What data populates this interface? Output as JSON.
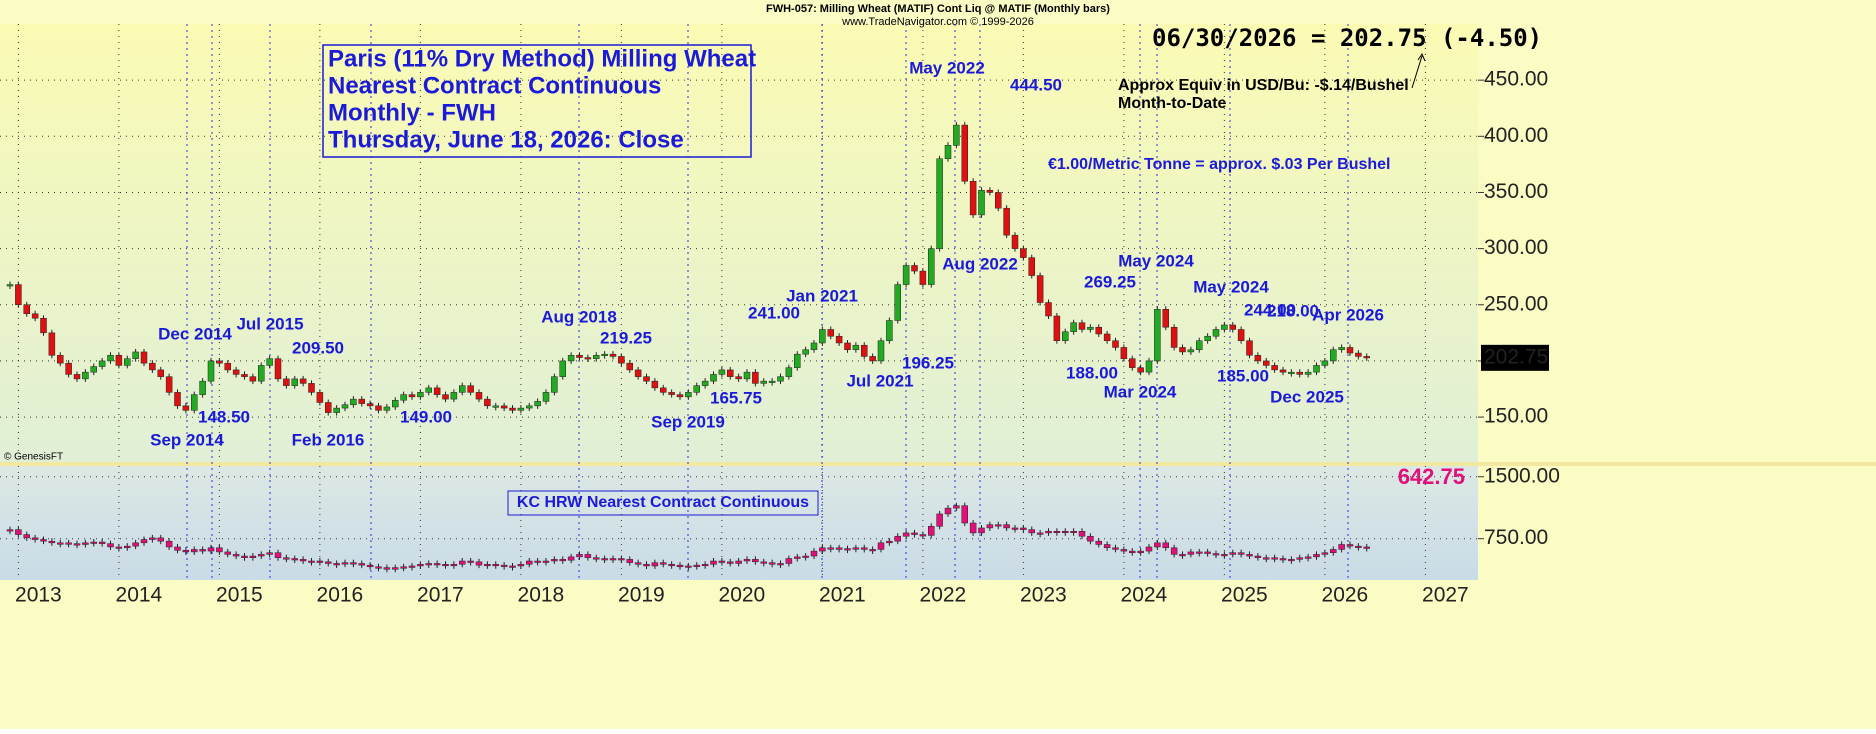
{
  "header": {
    "title": "FWH-057:  Milling Wheat (MATIF) Cont Liq @ MATIF  (Monthly bars)",
    "subtitle": "www.TradeNavigator.com © 1999-2026",
    "copyright": "© GenesisFT"
  },
  "chart_data": [
    {
      "type": "candlestick",
      "title": "Paris (11% Dry Method) Milling Wheat",
      "subtitle": [
        "Nearest Contract Continuous",
        "Monthly - FWH",
        "Thursday, June 18, 2026: Close"
      ],
      "notes": [
        "06/30/2026 = 202.75 (-4.50)",
        "Approx Equiv in USD/Bu: -$.14/Bushel",
        "Month-to-Date",
        "€1.00/Metric Tonne = approx. $.03 Per Bushel"
      ],
      "annotations": [
        "Dec 2014",
        "Jul 2015",
        "209.50",
        "148.50",
        "Sep 2014",
        "Feb 2016",
        "149.00",
        "Aug 2018",
        "219.25",
        "Sep 2019",
        "165.75",
        "Jan 2021",
        "241.00",
        "Jul 2021",
        "196.25",
        "May 2022",
        "444.50",
        "Aug 2022",
        "269.25",
        "May 2024",
        "188.00",
        "Mar 2024",
        "May 2024",
        "244.00",
        "218.00",
        "Apr 2026",
        "185.00",
        "Dec 2025"
      ],
      "x": [
        "2012-12",
        "2013-01",
        "2013-02",
        "2013-03",
        "2013-04",
        "2013-05",
        "2013-06",
        "2013-07",
        "2013-08",
        "2013-09",
        "2013-10",
        "2013-11",
        "2013-12",
        "2014-01",
        "2014-02",
        "2014-03",
        "2014-04",
        "2014-05",
        "2014-06",
        "2014-07",
        "2014-08",
        "2014-09",
        "2014-10",
        "2014-11",
        "2014-12",
        "2015-01",
        "2015-02",
        "2015-03",
        "2015-04",
        "2015-05",
        "2015-06",
        "2015-07",
        "2015-08",
        "2015-09",
        "2015-10",
        "2015-11",
        "2015-12",
        "2016-01",
        "2016-02",
        "2016-03",
        "2016-04",
        "2016-05",
        "2016-06",
        "2016-07",
        "2016-08",
        "2016-09",
        "2016-10",
        "2016-11",
        "2016-12",
        "2017-01",
        "2017-02",
        "2017-03",
        "2017-04",
        "2017-05",
        "2017-06",
        "2017-07",
        "2017-08",
        "2017-09",
        "2017-10",
        "2017-11",
        "2017-12",
        "2018-01",
        "2018-02",
        "2018-03",
        "2018-04",
        "2018-05",
        "2018-06",
        "2018-07",
        "2018-08",
        "2018-09",
        "2018-10",
        "2018-11",
        "2018-12",
        "2019-01",
        "2019-02",
        "2019-03",
        "2019-04",
        "2019-05",
        "2019-06",
        "2019-07",
        "2019-08",
        "2019-09",
        "2019-10",
        "2019-11",
        "2019-12",
        "2020-01",
        "2020-02",
        "2020-03",
        "2020-04",
        "2020-05",
        "2020-06",
        "2020-07",
        "2020-08",
        "2020-09",
        "2020-10",
        "2020-11",
        "2020-12",
        "2021-01",
        "2021-02",
        "2021-03",
        "2021-04",
        "2021-05",
        "2021-06",
        "2021-07",
        "2021-08",
        "2021-09",
        "2021-10",
        "2021-11",
        "2021-12",
        "2022-01",
        "2022-02",
        "2022-03",
        "2022-04",
        "2022-05",
        "2022-06",
        "2022-07",
        "2022-08",
        "2022-09",
        "2022-10",
        "2022-11",
        "2022-12",
        "2023-01",
        "2023-02",
        "2023-03",
        "2023-04",
        "2023-05",
        "2023-06",
        "2023-07",
        "2023-08",
        "2023-09",
        "2023-10",
        "2023-11",
        "2023-12",
        "2024-01",
        "2024-02",
        "2024-03",
        "2024-04",
        "2024-05",
        "2024-06",
        "2024-07",
        "2024-08",
        "2024-09",
        "2024-10",
        "2024-11",
        "2024-12",
        "2025-01",
        "2025-02",
        "2025-03",
        "2025-04",
        "2025-05",
        "2025-06",
        "2025-07",
        "2025-08",
        "2025-09",
        "2025-10",
        "2025-11",
        "2025-12",
        "2026-01",
        "2026-02",
        "2026-03",
        "2026-04",
        "2026-05",
        "2026-06"
      ],
      "values": [
        268,
        250,
        242,
        238,
        225,
        205,
        198,
        188,
        184,
        190,
        195,
        200,
        205,
        196,
        202,
        208,
        198,
        192,
        186,
        172,
        160,
        156,
        170,
        182,
        200,
        198,
        192,
        188,
        186,
        182,
        196,
        202,
        184,
        178,
        184,
        180,
        172,
        163,
        154,
        158,
        161,
        166,
        162,
        160,
        156,
        159,
        165,
        170,
        168,
        172,
        176,
        170,
        166,
        172,
        178,
        172,
        166,
        160,
        160,
        158,
        156,
        158,
        160,
        164,
        172,
        186,
        200,
        205,
        203,
        202,
        205,
        206,
        204,
        198,
        192,
        186,
        182,
        176,
        172,
        170,
        168,
        172,
        178,
        182,
        188,
        192,
        186,
        184,
        190,
        180,
        182,
        182,
        186,
        194,
        206,
        210,
        216,
        228,
        222,
        216,
        210,
        214,
        204,
        200,
        218,
        236,
        268,
        285,
        280,
        268,
        300,
        380,
        392,
        410,
        360,
        330,
        352,
        350,
        336,
        312,
        300,
        292,
        276,
        252,
        240,
        218,
        226,
        234,
        228,
        230,
        224,
        218,
        212,
        202,
        194,
        190,
        200,
        246,
        230,
        212,
        208,
        210,
        218,
        222,
        228,
        232,
        228,
        218,
        205,
        200,
        196,
        192,
        190,
        190,
        188,
        190,
        196,
        200,
        210,
        212,
        207,
        204,
        202.75
      ],
      "last_label": "202.75",
      "up_color": "#22aa22",
      "down_color": "#dd1111",
      "ylim": [
        110,
        500
      ],
      "yticks": [
        {
          "value": 150,
          "label": "150.00"
        },
        {
          "value": 200,
          "label": "200.00"
        },
        {
          "value": 250,
          "label": "250.00"
        },
        {
          "value": 300,
          "label": "300.00"
        },
        {
          "value": 350,
          "label": "350.00"
        },
        {
          "value": 400,
          "label": "400.00"
        },
        {
          "value": 450,
          "label": "450.00"
        }
      ],
      "xticks": [
        2013,
        2014,
        2015,
        2016,
        2017,
        2018,
        2019,
        2020,
        2021,
        2022,
        2023,
        2024,
        2025,
        2026,
        2027
      ],
      "grid": true
    },
    {
      "type": "candlestick",
      "title": "KC HRW Nearest Contract Continuous",
      "values": [
        860,
        800,
        760,
        740,
        720,
        700,
        700,
        690,
        680,
        700,
        710,
        690,
        650,
        640,
        660,
        700,
        740,
        760,
        720,
        650,
        610,
        590,
        620,
        600,
        640,
        590,
        560,
        540,
        520,
        540,
        560,
        580,
        520,
        510,
        500,
        480,
        480,
        470,
        450,
        450,
        460,
        450,
        430,
        410,
        400,
        380,
        400,
        410,
        420,
        440,
        450,
        440,
        430,
        440,
        480,
        470,
        430,
        440,
        430,
        420,
        420,
        440,
        480,
        470,
        480,
        500,
        490,
        530,
        560,
        520,
        510,
        500,
        510,
        500,
        460,
        440,
        420,
        460,
        440,
        430,
        410,
        420,
        430,
        440,
        480,
        470,
        450,
        480,
        500,
        470,
        460,
        440,
        450,
        510,
        530,
        540,
        600,
        640,
        640,
        620,
        630,
        640,
        620,
        620,
        700,
        720,
        780,
        820,
        800,
        790,
        900,
        1050,
        1120,
        1150,
        940,
        820,
        880,
        920,
        920,
        880,
        880,
        860,
        820,
        820,
        840,
        840,
        830,
        840,
        780,
        720,
        680,
        640,
        620,
        600,
        580,
        600,
        650,
        700,
        640,
        560,
        560,
        590,
        590,
        570,
        560,
        560,
        580,
        560,
        540,
        520,
        520,
        510,
        500,
        500,
        520,
        530,
        560,
        580,
        620,
        680,
        660,
        650,
        642.75
      ],
      "last_label": "642.75",
      "color": "#e0107a",
      "ylim": [
        250,
        1630
      ],
      "yticks": [
        {
          "value": 750,
          "label": "750.00"
        },
        {
          "value": 1500,
          "label": "1500.00"
        }
      ],
      "grid": true
    }
  ]
}
